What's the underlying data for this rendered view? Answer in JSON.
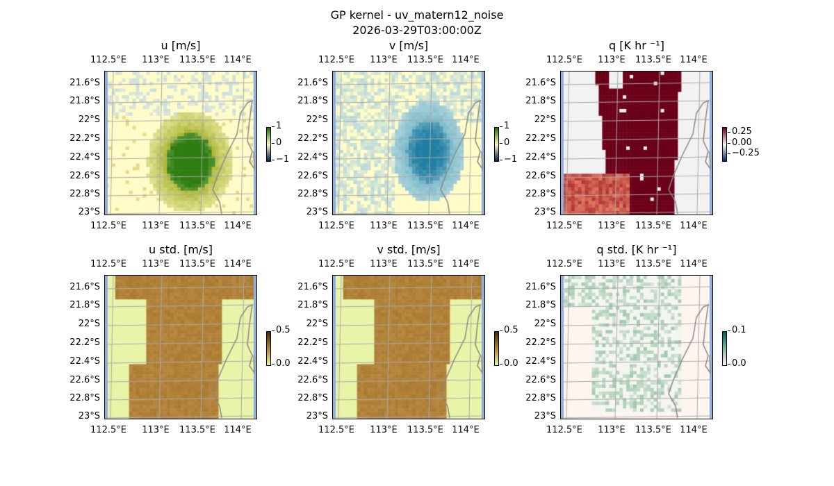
{
  "figure": {
    "title": "GP kernel - uv_matern12_noise",
    "timestamp": "2026-03-29T03:00:00Z"
  },
  "lon_ticks": [
    "112.5°E",
    "113°E",
    "113.5°E",
    "114°E"
  ],
  "lat_ticks": [
    "21.6°S",
    "21.8°S",
    "22°S",
    "22.2°S",
    "22.4°S",
    "22.6°S",
    "22.8°S",
    "23°S"
  ],
  "panels": [
    {
      "id": "u",
      "title": "u [m/s]",
      "colorbar_ticks": [
        "1",
        "0",
        "−1"
      ],
      "cmap": [
        "#00204c",
        "#fffcc8",
        "#1e6b0a"
      ]
    },
    {
      "id": "v",
      "title": "v [m/s]",
      "colorbar_ticks": [
        "1",
        "0",
        "−1"
      ],
      "cmap": [
        "#00204c",
        "#fffcc8",
        "#1e6b0a"
      ]
    },
    {
      "id": "q",
      "title": "q [K hr ⁻¹]",
      "colorbar_ticks": [
        "0.25",
        "0.00",
        "−0.25"
      ],
      "cmap": [
        "#053061",
        "#f7f7f7",
        "#67001f"
      ]
    },
    {
      "id": "ustd",
      "title": "u std. [m/s]",
      "colorbar_ticks": [
        "0.5",
        "0.0"
      ],
      "cmap": [
        "#e8f4a8",
        "#b0853a",
        "#3d2a0a"
      ]
    },
    {
      "id": "vstd",
      "title": "v std. [m/s]",
      "colorbar_ticks": [
        "0.5",
        "0.0"
      ],
      "cmap": [
        "#e8f4a8",
        "#b0853a",
        "#3d2a0a"
      ]
    },
    {
      "id": "qstd",
      "title": "q std. [K hr ⁻¹]",
      "colorbar_ticks": [
        "0.1",
        "0.0"
      ],
      "cmap": [
        "#fff5f0",
        "#7fb89a",
        "#00585f"
      ]
    }
  ]
}
